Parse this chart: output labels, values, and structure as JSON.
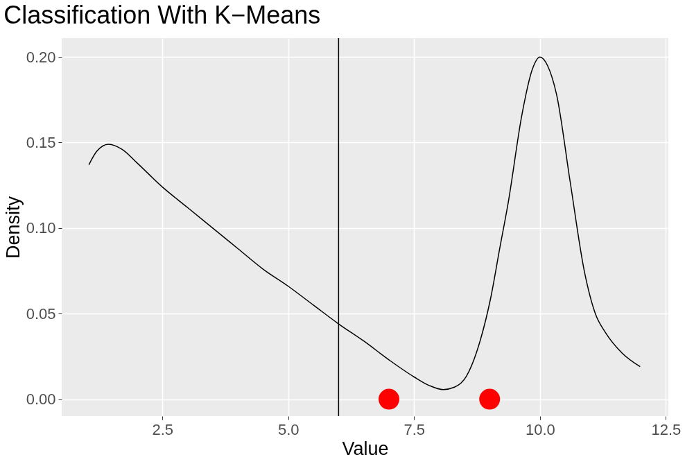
{
  "chart_data": {
    "type": "line",
    "title": "Classification With K−Means",
    "xlabel": "Value",
    "ylabel": "Density",
    "xlim": [
      0.5,
      12.55
    ],
    "ylim": [
      -0.0099,
      0.211
    ],
    "xticks": [
      {
        "value": 2.5,
        "label": "2.5"
      },
      {
        "value": 5,
        "label": "5.0"
      },
      {
        "value": 7.5,
        "label": "7.5"
      },
      {
        "value": 10,
        "label": "10.0"
      },
      {
        "value": 12.5,
        "label": "12.5"
      }
    ],
    "yticks": [
      {
        "value": 0,
        "label": "0.00"
      },
      {
        "value": 0.05,
        "label": "0.05"
      },
      {
        "value": 0.1,
        "label": "0.10"
      },
      {
        "value": 0.15,
        "label": "0.15"
      },
      {
        "value": 0.2,
        "label": "0.20"
      }
    ],
    "grid": true,
    "series": [
      {
        "color": "#000000",
        "x": [
          1.04,
          1.2,
          1.43,
          1.7,
          2.0,
          2.5,
          3.0,
          3.5,
          4.0,
          4.5,
          5.0,
          5.5,
          6.0,
          6.5,
          7.0,
          7.5,
          7.8,
          8.08,
          8.3,
          8.54,
          8.82,
          9.02,
          9.2,
          9.37,
          9.64,
          9.85,
          10.0,
          10.15,
          10.33,
          10.6,
          10.88,
          11.1,
          11.3,
          11.63,
          11.99
        ],
        "values": [
          0.137,
          0.145,
          0.149,
          0.146,
          0.138,
          0.124,
          0.112,
          0.1,
          0.088,
          0.076,
          0.066,
          0.055,
          0.044,
          0.034,
          0.023,
          0.013,
          0.008,
          0.0056,
          0.007,
          0.0135,
          0.035,
          0.059,
          0.088,
          0.115,
          0.166,
          0.193,
          0.2,
          0.195,
          0.178,
          0.127,
          0.075,
          0.05,
          0.039,
          0.027,
          0.019
        ]
      },
      {
        "type": "scatter",
        "color": "#ff0000",
        "x": [
          7,
          9
        ],
        "values": [
          0,
          0
        ]
      }
    ],
    "ref_lines": [
      {
        "axis": "x",
        "value": 6,
        "color": "#000000"
      }
    ]
  }
}
